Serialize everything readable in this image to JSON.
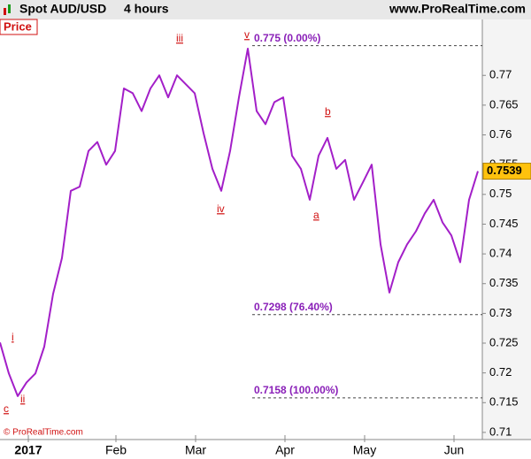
{
  "chart_data": {
    "type": "line",
    "title": "Spot AUD/USD",
    "subtitle": "4 hours",
    "source": "www.ProRealTime.com",
    "panel_label": "Price",
    "copyright": "© ProRealTime.com",
    "x": [
      0,
      1,
      2,
      3,
      4,
      5,
      6,
      7,
      8,
      9,
      10,
      11,
      12,
      13,
      14,
      15,
      16,
      17,
      18,
      19,
      20,
      21,
      22,
      23,
      24,
      25,
      26,
      27,
      28,
      29,
      30,
      31,
      32,
      33,
      34,
      35,
      36,
      37,
      38,
      39,
      40,
      41,
      42,
      43,
      44,
      45,
      46,
      47,
      48,
      49,
      50,
      51,
      52,
      53,
      54
    ],
    "series": [
      {
        "name": "AUD/USD",
        "color": "#a31fc8",
        "values": [
          0.7251,
          0.7199,
          0.7161,
          0.7184,
          0.7199,
          0.7244,
          0.7333,
          0.7393,
          0.7506,
          0.7513,
          0.7573,
          0.7588,
          0.755,
          0.7573,
          0.7678,
          0.767,
          0.764,
          0.7678,
          0.77,
          0.7663,
          0.77,
          0.7685,
          0.767,
          0.7603,
          0.7543,
          0.7506,
          0.7573,
          0.7663,
          0.7745,
          0.764,
          0.7618,
          0.7655,
          0.7663,
          0.7565,
          0.7543,
          0.7491,
          0.7565,
          0.7595,
          0.7543,
          0.7558,
          0.7491,
          0.752,
          0.755,
          0.7416,
          0.7335,
          0.7386,
          0.7416,
          0.7438,
          0.7468,
          0.7491,
          0.7453,
          0.7431,
          0.7386,
          0.7491,
          0.7539
        ]
      }
    ],
    "xlim": [
      0,
      54.5
    ],
    "xticks": [
      {
        "value": 3.2,
        "label": "2017"
      },
      {
        "value": 13.1,
        "label": "Feb"
      },
      {
        "value": 22.1,
        "label": "Mar"
      },
      {
        "value": 32.2,
        "label": "Apr"
      },
      {
        "value": 41.2,
        "label": "May"
      },
      {
        "value": 51.3,
        "label": "Jun"
      }
    ],
    "ylim": [
      0.7088,
      0.7794
    ],
    "yticks": [
      0.71,
      0.715,
      0.72,
      0.725,
      0.73,
      0.735,
      0.74,
      0.745,
      0.75,
      0.755,
      0.76,
      0.765,
      0.77
    ],
    "levels": [
      {
        "value": 0.775,
        "label": "0.775 (0.00%)"
      },
      {
        "value": 0.7298,
        "label": "0.7298 (76.40%)"
      },
      {
        "value": 0.7158,
        "label": "0.7158 (100.00%)"
      }
    ],
    "wave_labels": [
      "c",
      "i",
      "ii",
      "iii",
      "iv",
      "v",
      "a",
      "b"
    ]
  }
}
